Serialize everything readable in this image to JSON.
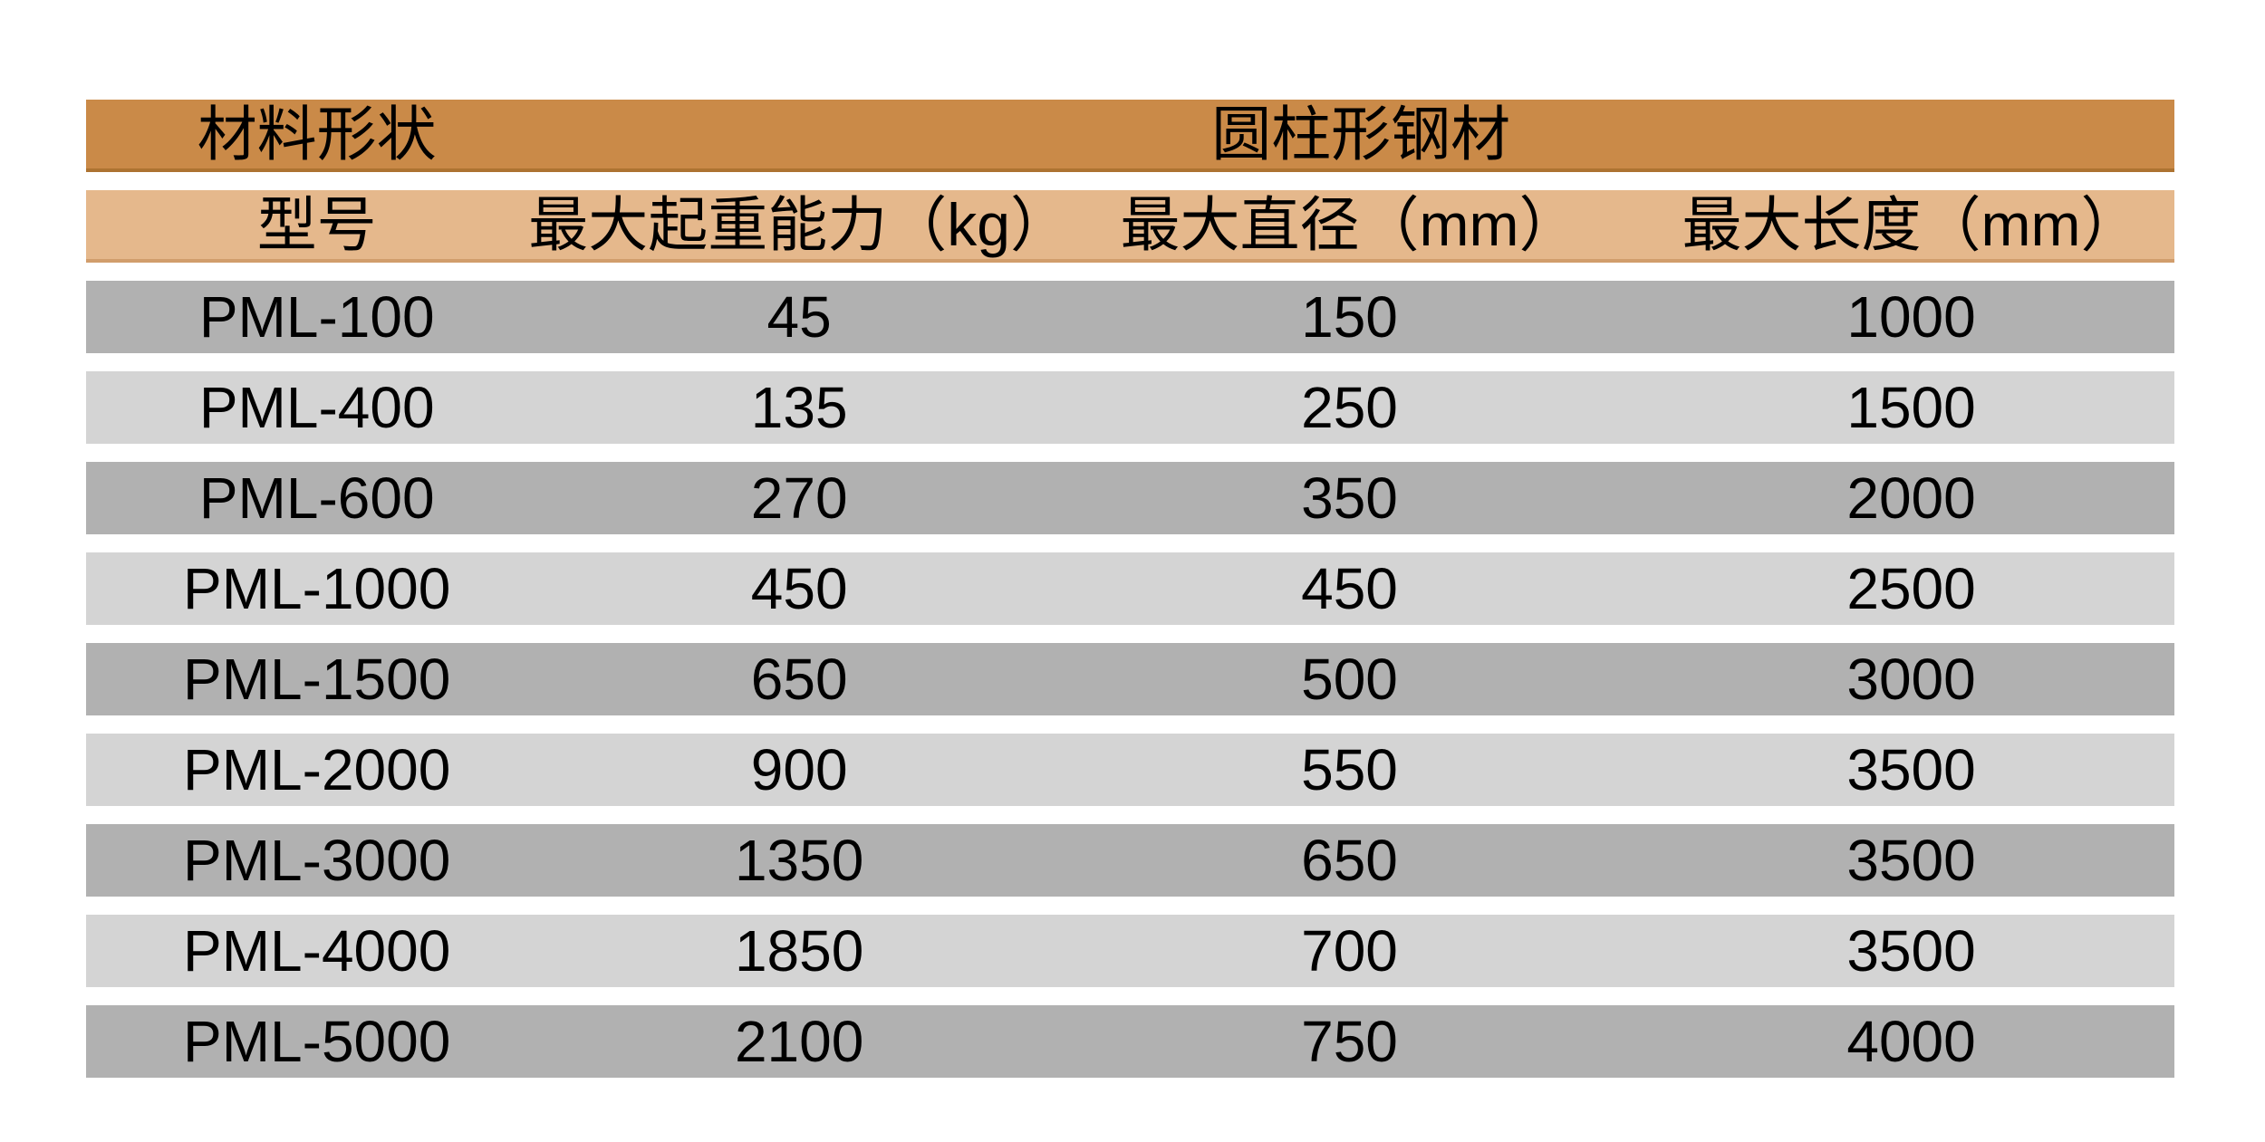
{
  "chart_data": {
    "type": "table",
    "header_row_1": {
      "material_shape_label": "材料形状",
      "material_group_label": "圆柱形钢材"
    },
    "columns": [
      "型号",
      "最大起重能力（kg）",
      "最大直径（mm）",
      "最大长度（mm）"
    ],
    "rows": [
      [
        "PML-100",
        "45",
        "150",
        "1000"
      ],
      [
        "PML-400",
        "135",
        "250",
        "1500"
      ],
      [
        "PML-600",
        "270",
        "350",
        "2000"
      ],
      [
        "PML-1000",
        "450",
        "450",
        "2500"
      ],
      [
        "PML-1500",
        "650",
        "500",
        "3000"
      ],
      [
        "PML-2000",
        "900",
        "550",
        "3500"
      ],
      [
        "PML-3000",
        "1350",
        "650",
        "3500"
      ],
      [
        "PML-4000",
        "1850",
        "700",
        "3500"
      ],
      [
        "PML-5000",
        "2100",
        "750",
        "4000"
      ]
    ]
  },
  "colors": {
    "background": "#FFFFFF",
    "text": "#000000",
    "header1_bg": "#CA8A48",
    "header1_border": "#AD7331",
    "header2_bg": "#E5B88C",
    "header2_border": "#D19D6C",
    "row_dark": "#B1B1B1",
    "row_light": "#D4D4D4"
  }
}
